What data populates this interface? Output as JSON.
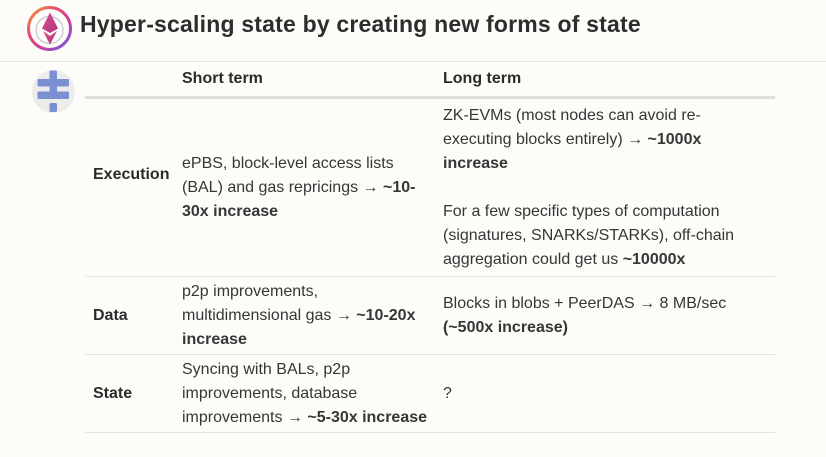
{
  "slide": {
    "title": "Hyper-scaling state by creating new forms of state"
  },
  "icons": {
    "logo": "ethereum-rainbow-ring-logo",
    "side": "blue-hash-glyph-circle"
  },
  "colors": {
    "background": "#fdfcf9",
    "title_text": "#2d2d2d",
    "body_text": "#363636",
    "top_divider": "#e6e5e2",
    "header_rule": "#dfdedc",
    "row_rule": "#e4e3e0",
    "side_icon_blue": "#7b8fd3",
    "side_icon_circle": "#ececea",
    "ring_orange": "#f0a13e",
    "ring_pink": "#e84b6e",
    "ring_magenta": "#cf3e98",
    "ring_purple": "#8e52c9",
    "ring_blue": "#4f7fd9",
    "eth_pink": "#d94f87",
    "eth_magenta": "#b23589"
  },
  "table": {
    "headers": {
      "short": "Short term",
      "long": "Long term"
    },
    "rows": [
      {
        "label": "Execution",
        "short": [
          [
            {
              "t": "ePBS, block-level access lists",
              "b": false
            }
          ],
          [
            {
              "t": "(BAL) and gas repricings → ",
              "b": false
            },
            {
              "t": "~10-",
              "b": true
            }
          ],
          [
            {
              "t": "30x increase",
              "b": true
            }
          ]
        ],
        "long": [
          [
            {
              "t": "ZK-EVMs (most nodes can avoid re-",
              "b": false
            }
          ],
          [
            {
              "t": "executing blocks entirely) → ",
              "b": false
            },
            {
              "t": "~1000x",
              "b": true
            }
          ],
          [
            {
              "t": "increase",
              "b": true
            }
          ],
          [],
          [
            {
              "t": "For a few specific types of computation",
              "b": false
            }
          ],
          [
            {
              "t": "(signatures, SNARKs/STARKs), off-chain",
              "b": false
            }
          ],
          [
            {
              "t": "aggregation could get us ",
              "b": false
            },
            {
              "t": "~10000x",
              "b": true
            }
          ]
        ]
      },
      {
        "label": "Data",
        "short": [
          [
            {
              "t": "p2p improvements,",
              "b": false
            }
          ],
          [
            {
              "t": "multidimensional gas → ",
              "b": false
            },
            {
              "t": "~10-20x",
              "b": true
            }
          ],
          [
            {
              "t": "increase",
              "b": true
            }
          ]
        ],
        "long": [
          [
            {
              "t": "Blocks in blobs + PeerDAS → 8 MB/sec",
              "b": false
            }
          ],
          [
            {
              "t": "(~500x increase)",
              "b": true
            }
          ]
        ]
      },
      {
        "label": "State",
        "short": [
          [
            {
              "t": "Syncing with BALs, p2p",
              "b": false
            }
          ],
          [
            {
              "t": "improvements, database",
              "b": false
            }
          ],
          [
            {
              "t": "improvements → ",
              "b": false
            },
            {
              "t": "~5-30x increase",
              "b": true
            }
          ]
        ],
        "long": [
          [
            {
              "t": "?",
              "b": false
            }
          ]
        ]
      }
    ]
  }
}
